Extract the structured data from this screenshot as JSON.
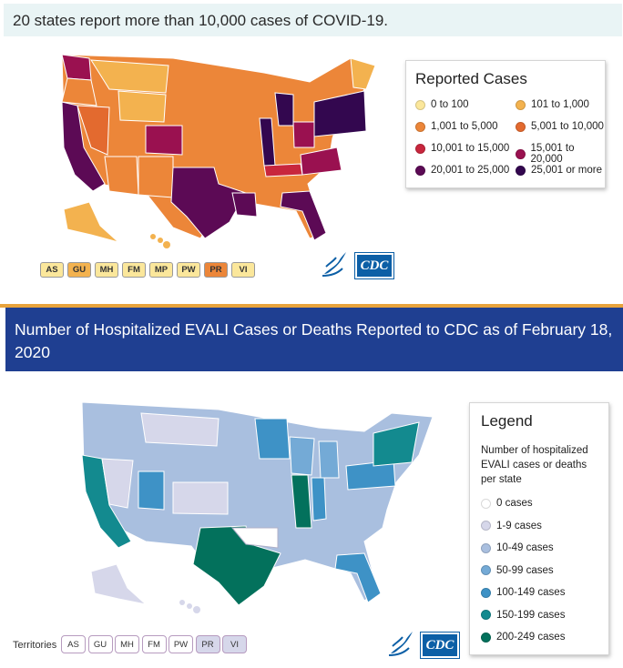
{
  "top_heading": "20 states report more than 10,000 cases of COVID-19.",
  "covid_legend": {
    "title": "Reported Cases",
    "items": [
      {
        "label": "0 to 100",
        "color": "#fbe79b"
      },
      {
        "label": "101 to 1,000",
        "color": "#f3b24f"
      },
      {
        "label": "1,001 to 5,000",
        "color": "#ec8639"
      },
      {
        "label": "5,001 to 10,000",
        "color": "#e36a2f"
      },
      {
        "label": "10,001 to 15,000",
        "color": "#c8263d"
      },
      {
        "label": "15,001 to 20,000",
        "color": "#9a1150"
      },
      {
        "label": "20,001 to 25,000",
        "color": "#5c0a55"
      },
      {
        "label": "25,001 or more",
        "color": "#33074f"
      }
    ]
  },
  "covid_territories": [
    {
      "code": "AS",
      "color": "#fbe79b"
    },
    {
      "code": "GU",
      "color": "#f3b24f"
    },
    {
      "code": "MH",
      "color": "#fbe79b"
    },
    {
      "code": "FM",
      "color": "#fbe79b"
    },
    {
      "code": "MP",
      "color": "#fbe79b"
    },
    {
      "code": "PW",
      "color": "#fbe79b"
    },
    {
      "code": "PR",
      "color": "#ec8639"
    },
    {
      "code": "VI",
      "color": "#fbe79b"
    }
  ],
  "evali_banner": "Number of Hospitalized EVALI Cases or Deaths Reported to CDC as of February 18, 2020",
  "evali_legend": {
    "title": "Legend",
    "subtitle": "Number of hospitalized EVALI cases or deaths per state",
    "items": [
      {
        "label": "0 cases",
        "color": "#ffffff"
      },
      {
        "label": "1-9 cases",
        "color": "#d6d7ea"
      },
      {
        "label": "10-49 cases",
        "color": "#a9bfdf"
      },
      {
        "label": "50-99 cases",
        "color": "#74aad6"
      },
      {
        "label": "100-149 cases",
        "color": "#3e92c6"
      },
      {
        "label": "150-199 cases",
        "color": "#138a8f"
      },
      {
        "label": "200-249 cases",
        "color": "#03715c"
      }
    ]
  },
  "evali_territories_label": "Territories",
  "evali_territories": [
    {
      "code": "AS",
      "color": "#ffffff"
    },
    {
      "code": "GU",
      "color": "#ffffff"
    },
    {
      "code": "MH",
      "color": "#ffffff"
    },
    {
      "code": "FM",
      "color": "#ffffff"
    },
    {
      "code": "PW",
      "color": "#ffffff"
    },
    {
      "code": "PR",
      "color": "#d6d7ea"
    },
    {
      "code": "VI",
      "color": "#d6d7ea"
    }
  ],
  "cdc_logo_text": "CDC"
}
